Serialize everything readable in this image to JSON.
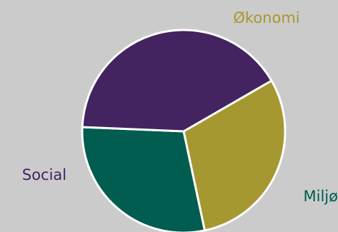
{
  "chart_data": {
    "type": "pie",
    "slices": [
      {
        "label": "Økonomi",
        "value": 30,
        "color": "#a69830"
      },
      {
        "label": "Miljø",
        "value": 29,
        "color": "#005d50"
      },
      {
        "label": "Social",
        "value": 41,
        "color": "#432360"
      }
    ],
    "start_angle_deg": -30,
    "slice_outline_color": "#ffffff",
    "background_color": "#cbcbcb",
    "title": "",
    "legend": "none"
  }
}
